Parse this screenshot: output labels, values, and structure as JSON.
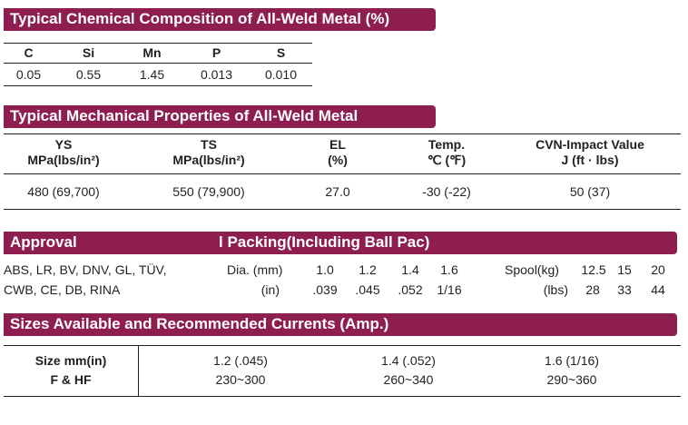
{
  "chemical": {
    "title": "Typical Chemical Composition of All-Weld Metal (%)",
    "headers": [
      "C",
      "Si",
      "Mn",
      "P",
      "S"
    ],
    "values": [
      "0.05",
      "0.55",
      "1.45",
      "0.013",
      "0.010"
    ]
  },
  "mechanical": {
    "title": "Typical Mechanical Properties of All-Weld Metal",
    "headers": [
      {
        "line1": "YS",
        "line2": "MPa(lbs/in²)"
      },
      {
        "line1": "TS",
        "line2": "MPa(lbs/in²)"
      },
      {
        "line1": "EL",
        "line2": "(%)"
      },
      {
        "line1": "Temp.",
        "line2": "℃ (℉)"
      },
      {
        "line1": "CVN-Impact Value",
        "line2": "J (ft · lbs)"
      }
    ],
    "values": [
      "480 (69,700)",
      "550 (79,900)",
      "27.0",
      "-30 (-22)",
      "50 (37)"
    ]
  },
  "approval": {
    "title": "Approval",
    "lines": [
      "ABS, LR, BV, DNV, GL, TÜV,",
      "CWB, CE, DB, RINA"
    ]
  },
  "packing": {
    "title": "l Packing(Including Ball Pac)",
    "dia_label": "Dia. (mm)",
    "dia_in_label": "(in)",
    "dia_mm": [
      "1.0",
      "1.2",
      "1.4",
      "1.6"
    ],
    "dia_in": [
      ".039",
      ".045",
      ".052",
      "1/16"
    ],
    "spool_label": "Spool(kg)",
    "spool_lbs_label": "(lbs)",
    "spool_kg": [
      "12.5",
      "15",
      "20"
    ],
    "spool_lbs": [
      "28",
      "33",
      "44"
    ]
  },
  "sizes": {
    "title": "Sizes Available and Recommended Currents (Amp.)",
    "row1_label": "Size mm(in)",
    "row2_label": "F & HF",
    "sizes": [
      "1.2 (.045)",
      "1.4 (.052)",
      "1.6 (1/16)"
    ],
    "currents": [
      "230~300",
      "260~340",
      "290~360"
    ]
  }
}
